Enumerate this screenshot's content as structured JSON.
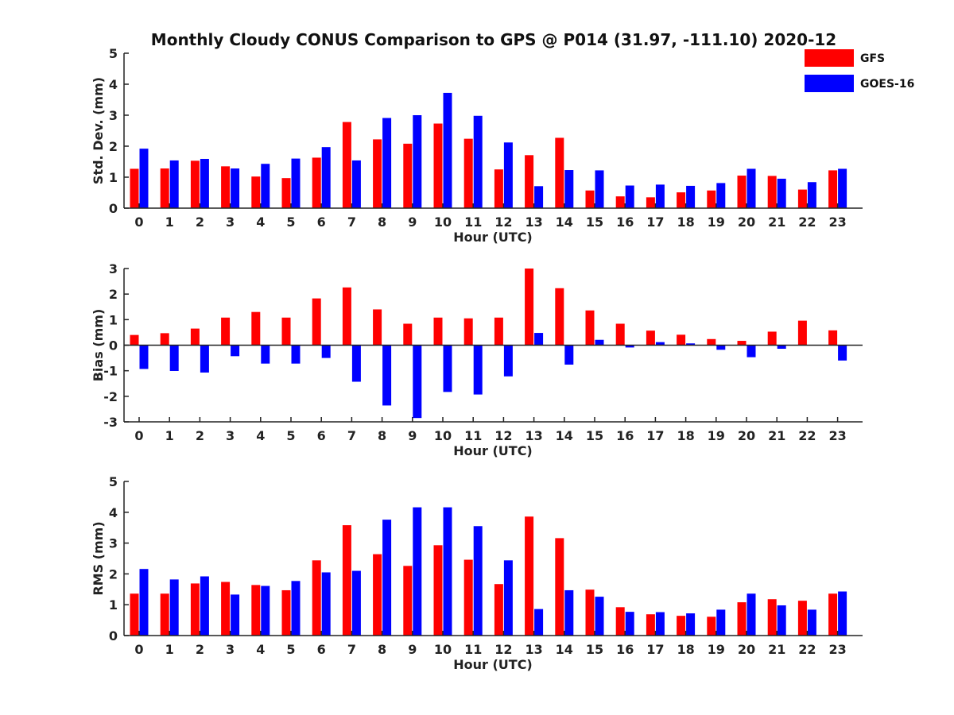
{
  "chart_data": {
    "title": "Monthly Cloudy CONUS Comparison to GPS @ P014 (31.97, -111.10) 2020-12",
    "legend": {
      "placement": "top-right",
      "entries": [
        {
          "name": "GFS",
          "color": "#ff0000"
        },
        {
          "name": "GOES-16",
          "color": "#0000ff"
        }
      ]
    },
    "panels": [
      {
        "type": "bar",
        "xlabel": "Hour (UTC)",
        "ylabel": "Std. Dev. (mm)",
        "ylim": [
          0,
          5
        ],
        "yticks": [
          0,
          1,
          2,
          3,
          4,
          5
        ],
        "categories": [
          "0",
          "1",
          "2",
          "3",
          "4",
          "5",
          "6",
          "7",
          "8",
          "9",
          "10",
          "11",
          "12",
          "13",
          "14",
          "15",
          "16",
          "17",
          "18",
          "19",
          "20",
          "21",
          "22",
          "23"
        ],
        "series": [
          {
            "name": "GFS",
            "color": "#ff0000",
            "values": [
              1.27,
              1.28,
              1.53,
              1.35,
              1.02,
              0.97,
              1.63,
              2.78,
              2.22,
              2.08,
              2.73,
              2.24,
              1.25,
              1.71,
              2.27,
              0.57,
              0.38,
              0.35,
              0.51,
              0.57,
              1.05,
              1.04,
              0.6,
              1.22
            ]
          },
          {
            "name": "GOES-16",
            "color": "#0000ff",
            "values": [
              1.92,
              1.54,
              1.59,
              1.28,
              1.43,
              1.6,
              1.97,
              1.54,
              2.91,
              3.0,
              3.72,
              2.98,
              2.12,
              0.71,
              1.23,
              1.22,
              0.73,
              0.76,
              0.72,
              0.81,
              1.27,
              0.95,
              0.84,
              1.27
            ]
          }
        ]
      },
      {
        "type": "bar",
        "xlabel": "Hour (UTC)",
        "ylabel": "Bias (mm)",
        "ylim": [
          -3,
          3
        ],
        "yticks": [
          -3,
          -2,
          -1,
          0,
          1,
          2,
          3
        ],
        "categories": [
          "0",
          "1",
          "2",
          "3",
          "4",
          "5",
          "6",
          "7",
          "8",
          "9",
          "10",
          "11",
          "12",
          "13",
          "14",
          "15",
          "16",
          "17",
          "18",
          "19",
          "20",
          "21",
          "22",
          "23"
        ],
        "series": [
          {
            "name": "GFS",
            "color": "#ff0000",
            "values": [
              0.4,
              0.47,
              0.65,
              1.08,
              1.3,
              1.08,
              1.83,
              2.26,
              1.4,
              0.84,
              1.08,
              1.05,
              1.08,
              3.0,
              2.23,
              1.36,
              0.84,
              0.57,
              0.41,
              0.24,
              0.17,
              0.53,
              0.96,
              0.58
            ]
          },
          {
            "name": "GOES-16",
            "color": "#0000ff",
            "values": [
              -0.93,
              -1.01,
              -1.07,
              -0.43,
              -0.72,
              -0.72,
              -0.5,
              -1.43,
              -2.36,
              -2.85,
              -1.83,
              -1.93,
              -1.22,
              0.48,
              -0.76,
              0.21,
              -0.09,
              0.12,
              0.07,
              -0.18,
              -0.47,
              -0.14,
              0.0,
              -0.6
            ]
          }
        ]
      },
      {
        "type": "bar",
        "xlabel": "Hour (UTC)",
        "ylabel": "RMS (mm)",
        "ylim": [
          0,
          5
        ],
        "yticks": [
          0,
          1,
          2,
          3,
          4,
          5
        ],
        "categories": [
          "0",
          "1",
          "2",
          "3",
          "4",
          "5",
          "6",
          "7",
          "8",
          "9",
          "10",
          "11",
          "12",
          "13",
          "14",
          "15",
          "16",
          "17",
          "18",
          "19",
          "20",
          "21",
          "22",
          "23"
        ],
        "series": [
          {
            "name": "GFS",
            "color": "#ff0000",
            "values": [
              1.36,
              1.36,
              1.69,
              1.74,
              1.64,
              1.47,
              2.44,
              3.58,
              2.64,
              2.26,
              2.93,
              2.46,
              1.67,
              3.86,
              3.16,
              1.49,
              0.92,
              0.69,
              0.64,
              0.61,
              1.08,
              1.18,
              1.13,
              1.36
            ]
          },
          {
            "name": "GOES-16",
            "color": "#0000ff",
            "values": [
              2.16,
              1.82,
              1.92,
              1.33,
              1.61,
              1.77,
              2.05,
              2.1,
              3.76,
              4.16,
              4.16,
              3.55,
              2.44,
              0.86,
              1.47,
              1.26,
              0.77,
              0.76,
              0.72,
              0.84,
              1.36,
              0.98,
              0.84,
              1.43
            ]
          }
        ]
      }
    ]
  }
}
